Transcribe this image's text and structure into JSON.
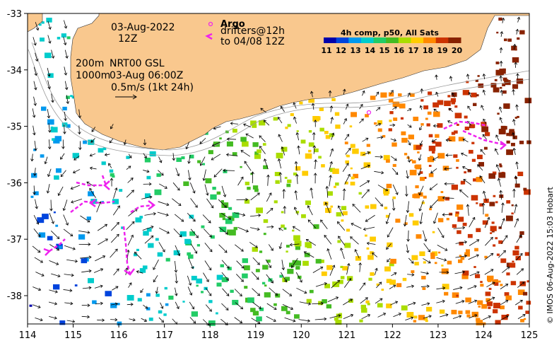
{
  "header": {
    "date": "03-Aug-2022",
    "time": "12Z",
    "legend_title": "Argo",
    "drifters": "drifters@12h",
    "drifters_to": "to 04/08 12Z"
  },
  "contours": {
    "depths": "200m",
    "depths2": "1000m",
    "product": "NRT00 GSL",
    "product_time": "03-Aug 06:00Z",
    "scale": "0.5m/s (1kt 24h)"
  },
  "colorbar": {
    "title": "4h comp, p50, All Sats",
    "ticks": [
      "11",
      "12",
      "13",
      "14",
      "15",
      "16",
      "17",
      "18",
      "19",
      "20"
    ],
    "colors": [
      "#0000aa",
      "#0044dd",
      "#0099ee",
      "#00cccc",
      "#22cc66",
      "#44bb22",
      "#aadd00",
      "#ffcc00",
      "#ff8800",
      "#cc3300",
      "#882200"
    ]
  },
  "axes": {
    "x_ticks": [
      "114",
      "115",
      "116",
      "117",
      "118",
      "119",
      "120",
      "121",
      "122",
      "123",
      "124",
      "125"
    ],
    "y_ticks": [
      "-33",
      "-34",
      "-35",
      "-36",
      "-37",
      "-38"
    ]
  },
  "credit": "© IMOS 06-Aug-2022 15:03 Hobart",
  "colors": {
    "land": "#f9c88e",
    "drifter": "#ee22ee",
    "isobath": "#999999"
  }
}
